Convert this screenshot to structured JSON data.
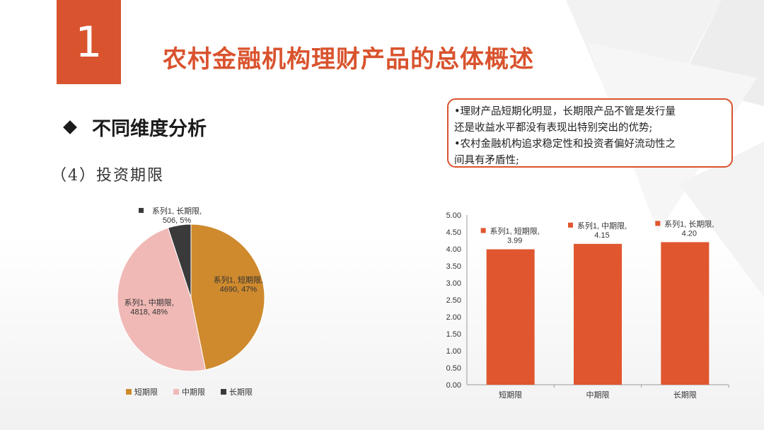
{
  "slide": {
    "number": "1",
    "title": "农村金融机构理财产品的总体概述",
    "section": "不同维度分析",
    "subsection": "（4）投资期限",
    "note_lines": [
      "•理财产品短期化明显，长期限产品不管是发行量",
      "还是收益水平都没有表现出特别突出的优势;",
      "•农村金融机构追求稳定性和投资者偏好流动性之",
      "间具有矛盾性;"
    ]
  },
  "colors": {
    "accent": "#d9532e",
    "pie_short": "#cf8a2e",
    "pie_mid": "#f0b9b6",
    "pie_long": "#3a3a3a",
    "bar": "#e0562f"
  },
  "pie_legend": [
    {
      "label": "短期限",
      "color": "#cf8a2e"
    },
    {
      "label": "中期限",
      "color": "#f0b9b6"
    },
    {
      "label": "长期限",
      "color": "#3a3a3a"
    }
  ],
  "chart_data": [
    {
      "type": "pie",
      "categories": [
        "短期限",
        "中期限",
        "长期限"
      ],
      "values": [
        4690,
        4818,
        506
      ],
      "percent": [
        "47%",
        "48%",
        "5%"
      ],
      "data_labels": [
        [
          "系列1, 短期限,",
          "4690, 47%"
        ],
        [
          "系列1, 中期限,",
          "4818, 48%"
        ],
        [
          "系列1, 长期限,",
          "506, 5%"
        ]
      ],
      "legend_placement": "bottom"
    },
    {
      "type": "bar",
      "categories": [
        "短期限",
        "中期限",
        "长期限"
      ],
      "values": [
        3.99,
        4.15,
        4.2
      ],
      "data_labels": [
        [
          "系列1, 短期限,",
          "3.99"
        ],
        [
          "系列1, 中期限,",
          "4.15"
        ],
        [
          "系列1, 长期限,",
          "4.20"
        ]
      ],
      "ylim": [
        0,
        5
      ],
      "yticks": [
        "0.00",
        "0.50",
        "1.00",
        "1.50",
        "2.00",
        "2.50",
        "3.00",
        "3.50",
        "4.00",
        "4.50",
        "5.00"
      ],
      "grid": false
    }
  ]
}
